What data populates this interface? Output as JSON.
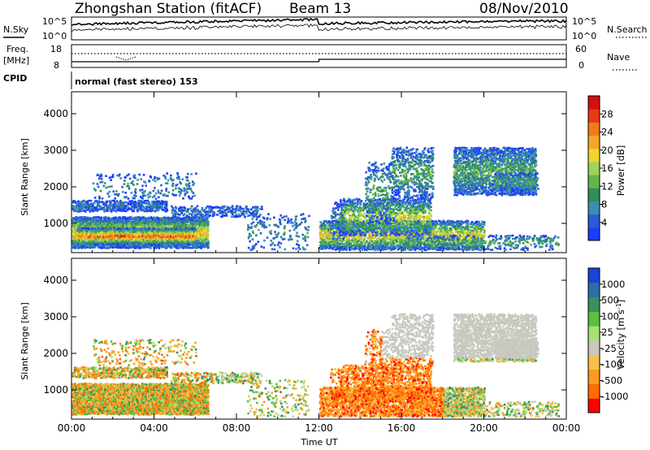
{
  "header": {
    "station_title": "Zhongshan Station (fitACF)",
    "beam": "Beam 13",
    "date": "08/Nov/2010"
  },
  "top_panels": {
    "nsky_label": "N.Sky",
    "nsky_ticks": [
      "10^5",
      "10^0"
    ],
    "nsearch_label": "N.Search",
    "nsearch_ticks": [
      "10^5",
      "10^0"
    ],
    "freq_label": "Freq.",
    "freq_unit": "[MHz]",
    "freq_ticks": [
      "18",
      "8"
    ],
    "nave_label": "Nave",
    "nave_ticks": [
      "60",
      "0"
    ],
    "cpid_label": "CPID",
    "cpid_text": "normal (fast stereo) 153"
  },
  "colors": {
    "power": [
      "#1a3cff",
      "#2b5bd6",
      "#3a8fb0",
      "#2f8f5a",
      "#63b548",
      "#9fd45a",
      "#f2d42a",
      "#f5a62a",
      "#f07a1a",
      "#e63a16",
      "#d60e0e"
    ],
    "velocity": [
      "#ff0000",
      "#ff6a00",
      "#ff9a1a",
      "#f5c04a",
      "#c8c8c0",
      "#a8e070",
      "#5ac040",
      "#3a9060",
      "#2a70a8",
      "#1a44d8"
    ]
  },
  "chart_data": [
    {
      "type": "heatmap",
      "quantity": "power",
      "ylabel": "Slant Range [km]",
      "x": [
        "00:00",
        "04:00",
        "08:00",
        "12:00",
        "16:00",
        "20:00",
        "00:00"
      ],
      "y_ticks": [
        "1000",
        "2000",
        "3000",
        "4000"
      ],
      "ylim": [
        200,
        4600
      ],
      "colorbar_label": "Power [dB]",
      "colorbar_ticks": [
        "4",
        "8",
        "12",
        "16",
        "20",
        "24",
        "28"
      ],
      "colorbar_range": [
        0,
        32
      ]
    },
    {
      "type": "heatmap",
      "quantity": "velocity",
      "ylabel": "Slant Range [km]",
      "xlabel": "Time UT",
      "x": [
        "00:00",
        "04:00",
        "08:00",
        "12:00",
        "16:00",
        "20:00",
        "00:00"
      ],
      "y_ticks": [
        "1000",
        "2000",
        "3000",
        "4000"
      ],
      "ylim": [
        200,
        4600
      ],
      "colorbar_label": "Velocity [m s",
      "colorbar_label_sup": "-1",
      "colorbar_label_end": "]",
      "colorbar_ticks": [
        "-1000",
        "-500",
        "-100",
        "-25",
        "25",
        "100",
        "500",
        "1000"
      ]
    }
  ]
}
